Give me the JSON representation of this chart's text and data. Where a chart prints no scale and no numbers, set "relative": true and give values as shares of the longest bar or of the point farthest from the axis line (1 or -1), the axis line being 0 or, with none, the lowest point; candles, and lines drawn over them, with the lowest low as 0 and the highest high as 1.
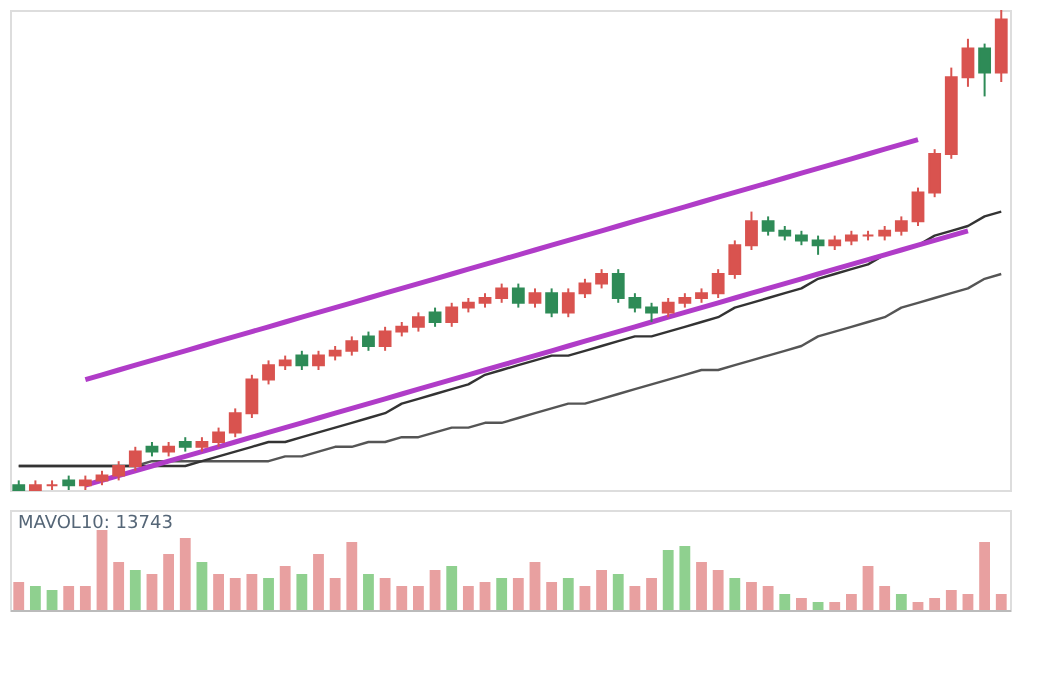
{
  "chart_data": [
    {
      "type": "candlestick",
      "relative": true,
      "categories": [
        null,
        null,
        null,
        null,
        null,
        null,
        null,
        null,
        null,
        null,
        null,
        null,
        null,
        null,
        null,
        null,
        null,
        null,
        null,
        null,
        null,
        null,
        null,
        null,
        null,
        null,
        null,
        null,
        null,
        null,
        null,
        null,
        null,
        null,
        null,
        null,
        null,
        null,
        null,
        null,
        null,
        null,
        null,
        null,
        null,
        null,
        null,
        null,
        null,
        null,
        null,
        null,
        null,
        null,
        null,
        null,
        null,
        null,
        null,
        null
      ],
      "ohlc": [
        [
          0.01,
          0.02,
          0.0,
          0.0
        ],
        [
          0.0,
          0.02,
          0.0,
          0.01
        ],
        [
          0.01,
          0.02,
          0.0,
          0.01
        ],
        [
          0.02,
          0.03,
          0.0,
          0.01
        ],
        [
          0.01,
          0.03,
          0.0,
          0.02
        ],
        [
          0.02,
          0.04,
          0.01,
          0.03
        ],
        [
          0.03,
          0.06,
          0.02,
          0.05
        ],
        [
          0.05,
          0.09,
          0.04,
          0.08
        ],
        [
          0.09,
          0.1,
          0.07,
          0.08
        ],
        [
          0.08,
          0.1,
          0.07,
          0.09
        ],
        [
          0.1,
          0.11,
          0.08,
          0.09
        ],
        [
          0.09,
          0.11,
          0.08,
          0.1
        ],
        [
          0.1,
          0.13,
          0.09,
          0.12
        ],
        [
          0.12,
          0.17,
          0.11,
          0.16
        ],
        [
          0.16,
          0.24,
          0.15,
          0.23
        ],
        [
          0.23,
          0.27,
          0.22,
          0.26
        ],
        [
          0.26,
          0.28,
          0.25,
          0.27
        ],
        [
          0.28,
          0.29,
          0.25,
          0.26
        ],
        [
          0.26,
          0.29,
          0.25,
          0.28
        ],
        [
          0.28,
          0.3,
          0.27,
          0.29
        ],
        [
          0.29,
          0.32,
          0.28,
          0.31
        ],
        [
          0.32,
          0.33,
          0.29,
          0.3
        ],
        [
          0.3,
          0.34,
          0.29,
          0.33
        ],
        [
          0.33,
          0.35,
          0.32,
          0.34
        ],
        [
          0.34,
          0.37,
          0.33,
          0.36
        ],
        [
          0.37,
          0.38,
          0.34,
          0.35
        ],
        [
          0.35,
          0.39,
          0.34,
          0.38
        ],
        [
          0.38,
          0.4,
          0.37,
          0.39
        ],
        [
          0.39,
          0.41,
          0.38,
          0.4
        ],
        [
          0.4,
          0.43,
          0.39,
          0.42
        ],
        [
          0.42,
          0.43,
          0.38,
          0.39
        ],
        [
          0.39,
          0.42,
          0.38,
          0.41
        ],
        [
          0.41,
          0.42,
          0.36,
          0.37
        ],
        [
          0.37,
          0.42,
          0.36,
          0.41
        ],
        [
          0.41,
          0.44,
          0.4,
          0.43
        ],
        [
          0.43,
          0.46,
          0.42,
          0.45
        ],
        [
          0.45,
          0.46,
          0.39,
          0.4
        ],
        [
          0.4,
          0.41,
          0.37,
          0.38
        ],
        [
          0.38,
          0.39,
          0.35,
          0.37
        ],
        [
          0.37,
          0.4,
          0.36,
          0.39
        ],
        [
          0.39,
          0.41,
          0.38,
          0.4
        ],
        [
          0.4,
          0.42,
          0.39,
          0.41
        ],
        [
          0.41,
          0.46,
          0.4,
          0.45
        ],
        [
          0.45,
          0.52,
          0.44,
          0.51
        ],
        [
          0.51,
          0.58,
          0.5,
          0.56
        ],
        [
          0.56,
          0.57,
          0.53,
          0.54
        ],
        [
          0.54,
          0.55,
          0.52,
          0.53
        ],
        [
          0.53,
          0.54,
          0.51,
          0.52
        ],
        [
          0.52,
          0.53,
          0.49,
          0.51
        ],
        [
          0.51,
          0.53,
          0.5,
          0.52
        ],
        [
          0.52,
          0.54,
          0.51,
          0.53
        ],
        [
          0.53,
          0.54,
          0.52,
          0.53
        ],
        [
          0.53,
          0.55,
          0.52,
          0.54
        ],
        [
          0.54,
          0.57,
          0.53,
          0.56
        ],
        [
          0.56,
          0.63,
          0.55,
          0.62
        ],
        [
          0.62,
          0.71,
          0.61,
          0.7
        ],
        [
          0.7,
          0.88,
          0.69,
          0.86
        ],
        [
          0.86,
          0.94,
          0.84,
          0.92
        ],
        [
          0.92,
          0.93,
          0.82,
          0.87
        ],
        [
          0.87,
          1.0,
          0.85,
          0.98
        ]
      ],
      "series": [
        {
          "type": "line",
          "color": "#555555",
          "values": [
            0.05,
            0.05,
            0.05,
            0.05,
            0.05,
            0.05,
            0.05,
            0.05,
            0.06,
            0.06,
            0.06,
            0.06,
            0.06,
            0.06,
            0.06,
            0.06,
            0.07,
            0.07,
            0.08,
            0.09,
            0.09,
            0.1,
            0.1,
            0.11,
            0.11,
            0.12,
            0.13,
            0.13,
            0.14,
            0.14,
            0.15,
            0.16,
            0.17,
            0.18,
            0.18,
            0.19,
            0.2,
            0.21,
            0.22,
            0.23,
            0.24,
            0.25,
            0.25,
            0.26,
            0.27,
            0.28,
            0.29,
            0.3,
            0.32,
            0.33,
            0.34,
            0.35,
            0.36,
            0.38,
            0.39,
            0.4,
            0.41,
            0.42,
            0.44,
            0.45
          ]
        },
        {
          "type": "line",
          "color": "#333333",
          "values": [
            0.05,
            0.05,
            0.05,
            0.05,
            0.05,
            0.05,
            0.05,
            0.05,
            0.05,
            0.05,
            0.05,
            0.06,
            0.07,
            0.08,
            0.09,
            0.1,
            0.1,
            0.11,
            0.12,
            0.13,
            0.14,
            0.15,
            0.16,
            0.18,
            0.19,
            0.2,
            0.21,
            0.22,
            0.24,
            0.25,
            0.26,
            0.27,
            0.28,
            0.28,
            0.29,
            0.3,
            0.31,
            0.32,
            0.32,
            0.33,
            0.34,
            0.35,
            0.36,
            0.38,
            0.39,
            0.4,
            0.41,
            0.42,
            0.44,
            0.45,
            0.46,
            0.47,
            0.49,
            0.5,
            0.51,
            0.53,
            0.54,
            0.55,
            0.57,
            0.58
          ]
        },
        {
          "type": "line",
          "color": "#b03cc8",
          "values": [
            null,
            null,
            null,
            null,
            0.23,
            0.24,
            0.25,
            0.26,
            0.27,
            0.28,
            0.29,
            0.3,
            0.31,
            0.32,
            0.33,
            0.34,
            0.35,
            0.36,
            0.37,
            0.38,
            0.39,
            0.4,
            0.41,
            0.42,
            0.43,
            0.44,
            0.45,
            0.46,
            0.47,
            0.48,
            0.49,
            0.5,
            0.51,
            0.52,
            0.53,
            0.54,
            0.55,
            0.56,
            0.57,
            0.58,
            0.59,
            0.6,
            0.61,
            0.62,
            0.63,
            0.64,
            0.65,
            0.66,
            0.67,
            0.68,
            0.69,
            0.7,
            0.71,
            0.72,
            0.73,
            null,
            null,
            null,
            null,
            null
          ]
        },
        {
          "type": "line",
          "color": "#b03cc8",
          "values": [
            null,
            null,
            null,
            null,
            0.01,
            0.02,
            0.03,
            0.04,
            0.05,
            0.06,
            0.07,
            0.08,
            0.09,
            0.1,
            0.11,
            0.12,
            0.13,
            0.14,
            0.15,
            0.16,
            0.17,
            0.18,
            0.19,
            0.2,
            0.21,
            0.22,
            0.23,
            0.24,
            0.25,
            0.26,
            0.27,
            0.28,
            0.29,
            0.3,
            0.31,
            0.32,
            0.33,
            0.34,
            0.35,
            0.36,
            0.37,
            0.38,
            0.39,
            0.4,
            0.41,
            0.42,
            0.43,
            0.44,
            0.45,
            0.46,
            0.47,
            0.48,
            0.49,
            0.5,
            0.51,
            0.52,
            0.53,
            0.54,
            null,
            null
          ]
        }
      ]
    },
    {
      "type": "bar",
      "relative": true,
      "categories": [
        null,
        null,
        null,
        null,
        null,
        null,
        null,
        null,
        null,
        null,
        null,
        null,
        null,
        null,
        null,
        null,
        null,
        null,
        null,
        null,
        null,
        null,
        null,
        null,
        null,
        null,
        null,
        null,
        null,
        null,
        null,
        null,
        null,
        null,
        null,
        null,
        null,
        null,
        null,
        null,
        null,
        null,
        null,
        null,
        null,
        null,
        null,
        null,
        null,
        null,
        null,
        null,
        null,
        null,
        null,
        null,
        null,
        null,
        null,
        null
      ],
      "values": [
        0.35,
        0.3,
        0.25,
        0.3,
        0.3,
        1.0,
        0.6,
        0.5,
        0.45,
        0.7,
        0.9,
        0.6,
        0.45,
        0.4,
        0.45,
        0.4,
        0.55,
        0.45,
        0.7,
        0.4,
        0.85,
        0.45,
        0.4,
        0.3,
        0.3,
        0.5,
        0.55,
        0.3,
        0.35,
        0.4,
        0.4,
        0.6,
        0.35,
        0.4,
        0.3,
        0.5,
        0.45,
        0.3,
        0.4,
        0.75,
        0.8,
        0.6,
        0.5,
        0.4,
        0.35,
        0.3,
        0.2,
        0.15,
        0.1,
        0.1,
        0.2,
        0.55,
        0.3,
        0.2,
        0.1,
        0.15,
        0.25,
        0.2,
        0.85,
        0.2
      ],
      "colors": [
        "#e8a0a0",
        "#8fd08f",
        "#8fd08f",
        "#e8a0a0",
        "#e8a0a0",
        "#e8a0a0",
        "#e8a0a0",
        "#8fd08f",
        "#e8a0a0",
        "#e8a0a0",
        "#e8a0a0",
        "#8fd08f",
        "#e8a0a0",
        "#e8a0a0",
        "#e8a0a0",
        "#8fd08f",
        "#e8a0a0",
        "#8fd08f",
        "#e8a0a0",
        "#e8a0a0",
        "#e8a0a0",
        "#8fd08f",
        "#e8a0a0",
        "#e8a0a0",
        "#e8a0a0",
        "#e8a0a0",
        "#8fd08f",
        "#e8a0a0",
        "#e8a0a0",
        "#8fd08f",
        "#e8a0a0",
        "#e8a0a0",
        "#e8a0a0",
        "#8fd08f",
        "#e8a0a0",
        "#e8a0a0",
        "#8fd08f",
        "#e8a0a0",
        "#e8a0a0",
        "#8fd08f",
        "#8fd08f",
        "#e8a0a0",
        "#e8a0a0",
        "#8fd08f",
        "#e8a0a0",
        "#e8a0a0",
        "#8fd08f",
        "#e8a0a0",
        "#8fd08f",
        "#e8a0a0",
        "#e8a0a0",
        "#e8a0a0",
        "#e8a0a0",
        "#8fd08f",
        "#e8a0a0",
        "#e8a0a0",
        "#e8a0a0",
        "#e8a0a0",
        "#e8a0a0",
        "#e8a0a0"
      ],
      "annotations": [
        "MAVOL10: 13743"
      ]
    }
  ]
}
